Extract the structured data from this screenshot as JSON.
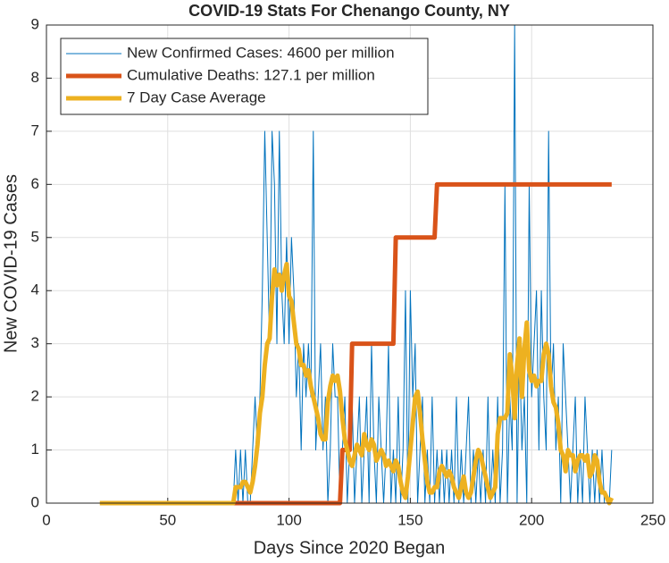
{
  "chart_data": {
    "type": "line",
    "title": "COVID-19 Stats For Chenango County, NY",
    "xlabel": "Days Since 2020 Began",
    "ylabel": "New COVID-19 Cases",
    "xlim": [
      0,
      250
    ],
    "xticks": [
      0,
      50,
      100,
      150,
      200,
      250
    ],
    "ylim": [
      0,
      9
    ],
    "yticks": [
      0,
      1,
      2,
      3,
      4,
      5,
      6,
      7,
      8,
      9
    ],
    "grid": true,
    "legend": "upper left",
    "x": [
      22,
      23,
      24,
      25,
      26,
      27,
      28,
      29,
      30,
      31,
      32,
      33,
      34,
      35,
      36,
      37,
      38,
      39,
      40,
      41,
      42,
      43,
      44,
      45,
      46,
      47,
      48,
      49,
      50,
      51,
      52,
      53,
      54,
      55,
      56,
      57,
      58,
      59,
      60,
      61,
      62,
      63,
      64,
      65,
      66,
      67,
      68,
      69,
      70,
      71,
      72,
      73,
      74,
      75,
      76,
      77,
      78,
      79,
      80,
      81,
      82,
      83,
      84,
      85,
      86,
      87,
      88,
      89,
      90,
      91,
      92,
      93,
      94,
      95,
      96,
      97,
      98,
      99,
      100,
      101,
      102,
      103,
      104,
      105,
      106,
      107,
      108,
      109,
      110,
      111,
      112,
      113,
      114,
      115,
      116,
      117,
      118,
      119,
      120,
      121,
      122,
      123,
      124,
      125,
      126,
      127,
      128,
      129,
      130,
      131,
      132,
      133,
      134,
      135,
      136,
      137,
      138,
      139,
      140,
      141,
      142,
      143,
      144,
      145,
      146,
      147,
      148,
      149,
      150,
      151,
      152,
      153,
      154,
      155,
      156,
      157,
      158,
      159,
      160,
      161,
      162,
      163,
      164,
      165,
      166,
      167,
      168,
      169,
      170,
      171,
      172,
      173,
      174,
      175,
      176,
      177,
      178,
      179,
      180,
      181,
      182,
      183,
      184,
      185,
      186,
      187,
      188,
      189,
      190,
      191,
      192,
      193,
      194,
      195,
      196,
      197,
      198,
      199,
      200,
      201,
      202,
      203,
      204,
      205,
      206,
      207,
      208,
      209,
      210,
      211,
      212,
      213,
      214,
      215,
      216,
      217,
      218,
      219,
      220,
      221,
      222,
      223,
      224,
      225,
      226,
      227,
      228,
      229,
      230,
      231,
      232,
      233
    ],
    "series": [
      {
        "name": "New Confirmed Cases: 4600 per million",
        "color": "#0072bd",
        "width": 1,
        "values": [
          0,
          0,
          0,
          0,
          0,
          0,
          0,
          0,
          0,
          0,
          0,
          0,
          0,
          0,
          0,
          0,
          0,
          0,
          0,
          0,
          0,
          0,
          0,
          0,
          0,
          0,
          0,
          0,
          0,
          0,
          0,
          0,
          0,
          0,
          0,
          0,
          0,
          0,
          0,
          0,
          0,
          0,
          0,
          0,
          0,
          0,
          0,
          0,
          0,
          0,
          0,
          0,
          0,
          0,
          0,
          0,
          1,
          0,
          1,
          0,
          1,
          0,
          0,
          1,
          2,
          1,
          2,
          4,
          7,
          5,
          3,
          7,
          6,
          3,
          7,
          4,
          3,
          5,
          3,
          5,
          4,
          2,
          3,
          1,
          3,
          2,
          3,
          2,
          7,
          1,
          2,
          3,
          1,
          2,
          0,
          1,
          3,
          2,
          2,
          0,
          1,
          2,
          0,
          1,
          2,
          0,
          1,
          2,
          0,
          1,
          2,
          0,
          3,
          1,
          0,
          2,
          1,
          0,
          1,
          3,
          0,
          1,
          0,
          2,
          0,
          1,
          4,
          0,
          4,
          2,
          3,
          0,
          1,
          2,
          0,
          1,
          0,
          2,
          0,
          1,
          0,
          1,
          0,
          1,
          0,
          1,
          0,
          2,
          0,
          1,
          0,
          1,
          2,
          0,
          1,
          0,
          1,
          0,
          1,
          0,
          2,
          0,
          1,
          0,
          2,
          0,
          1,
          6,
          0,
          2,
          1,
          9,
          0,
          3,
          1,
          2,
          0,
          6,
          2,
          3,
          4,
          1,
          4,
          2,
          1,
          7,
          2,
          3,
          1,
          2,
          0,
          3,
          2,
          1,
          0,
          1,
          2,
          0,
          1,
          0,
          2,
          1,
          0,
          1,
          0,
          1,
          0,
          1,
          0,
          0,
          0,
          1
        ]
      },
      {
        "name": "Cumulative Deaths: 127.1 per million",
        "color": "#d95319",
        "width": 5,
        "values": [
          null,
          null,
          null,
          null,
          null,
          null,
          null,
          null,
          null,
          null,
          null,
          null,
          null,
          null,
          null,
          null,
          null,
          null,
          null,
          null,
          null,
          null,
          null,
          null,
          null,
          null,
          null,
          null,
          null,
          null,
          null,
          null,
          null,
          null,
          null,
          null,
          null,
          null,
          null,
          null,
          null,
          null,
          null,
          null,
          null,
          null,
          null,
          null,
          null,
          null,
          null,
          null,
          null,
          null,
          null,
          0,
          0,
          0,
          0,
          0,
          0,
          0,
          0,
          0,
          0,
          0,
          0,
          0,
          0,
          0,
          0,
          0,
          0,
          0,
          0,
          0,
          0,
          0,
          0,
          0,
          0,
          0,
          0,
          0,
          0,
          0,
          0,
          0,
          0,
          0,
          0,
          0,
          0,
          0,
          0,
          0,
          0,
          0,
          0,
          0,
          1,
          1,
          1,
          1,
          3,
          3,
          3,
          3,
          3,
          3,
          3,
          3,
          3,
          3,
          3,
          3,
          3,
          3,
          3,
          3,
          3,
          3,
          5,
          5,
          5,
          5,
          5,
          5,
          5,
          5,
          5,
          5,
          5,
          5,
          5,
          5,
          5,
          5,
          5,
          6,
          6,
          6,
          6,
          6,
          6,
          6,
          6,
          6,
          6,
          6,
          6,
          6,
          6,
          6,
          6,
          6,
          6,
          6,
          6,
          6,
          6,
          6,
          6,
          6,
          6,
          6,
          6,
          6,
          6,
          6,
          6,
          6,
          6,
          6,
          6,
          6,
          6,
          6,
          6,
          6,
          6,
          6,
          6,
          6,
          6,
          6,
          6,
          6,
          6,
          6,
          6,
          6,
          6,
          6,
          6,
          6,
          6,
          6,
          6,
          6,
          6,
          6,
          6,
          6,
          6,
          6,
          6,
          6,
          6,
          6,
          6,
          6
        ]
      },
      {
        "name": "7 Day Case Average",
        "color": "#edb120",
        "width": 5,
        "values": [
          0,
          0,
          0,
          0,
          0,
          0,
          0,
          0,
          0,
          0,
          0,
          0,
          0,
          0,
          0,
          0,
          0,
          0,
          0,
          0,
          0,
          0,
          0,
          0,
          0,
          0,
          0,
          0,
          0,
          0,
          0,
          0,
          0,
          0,
          0,
          0,
          0,
          0,
          0,
          0,
          0,
          0,
          0,
          0,
          0,
          0,
          0,
          0,
          0,
          0,
          0,
          0,
          0,
          0,
          0,
          0,
          0.3,
          0.3,
          0.3,
          0.4,
          0.4,
          0.3,
          0.2,
          0.4,
          0.7,
          1.1,
          1.7,
          2.0,
          2.6,
          3.0,
          3.1,
          3.9,
          4.4,
          4.1,
          4.3,
          4.0,
          4.3,
          4.5,
          3.9,
          3.8,
          3.4,
          3.0,
          2.9,
          2.6,
          2.6,
          2.4,
          2.5,
          2.2,
          2.0,
          1.8,
          1.6,
          1.3,
          1.2,
          1.2,
          1.9,
          2.2,
          2.4,
          2.3,
          2.4,
          2.1,
          1.6,
          1.2,
          1.0,
          0.8,
          0.7,
          0.9,
          1.1,
          1.0,
          0.9,
          1.3,
          1.1,
          1.0,
          1.2,
          1.1,
          0.8,
          0.9,
          1.0,
          0.9,
          0.7,
          0.8,
          0.7,
          0.6,
          0.8,
          0.7,
          0.4,
          0.2,
          0.1,
          0.5,
          1.0,
          1.5,
          2.0,
          2.1,
          1.7,
          1.2,
          0.8,
          0.4,
          0.2,
          0.2,
          0.3,
          0.3,
          0.6,
          0.7,
          0.6,
          0.5,
          0.6,
          0.5,
          0.3,
          0.2,
          0.1,
          0.3,
          0.5,
          0.2,
          0.1,
          0.2,
          0.5,
          0.8,
          1.0,
          0.9,
          0.7,
          0.5,
          0.3,
          0.1,
          0.2,
          0.3,
          1.3,
          1.6,
          1.6,
          1.6,
          1.7,
          2.8,
          2.4,
          1.6,
          2.6,
          3.1,
          2.0,
          2.9,
          3.4,
          2.5,
          2.3,
          2.4,
          2.2,
          2.3,
          2.3,
          2.8,
          3.0,
          2.8,
          2.2,
          1.9,
          1.8,
          1.5,
          1.0,
          0.9,
          0.6,
          1.0,
          0.9,
          0.9,
          0.6,
          0.8,
          0.9,
          0.9,
          0.8,
          0.9,
          0.5,
          0.6,
          0.9,
          0.8,
          0.4,
          0.2,
          0.2,
          0.1,
          0.0,
          0.1
        ]
      }
    ]
  }
}
